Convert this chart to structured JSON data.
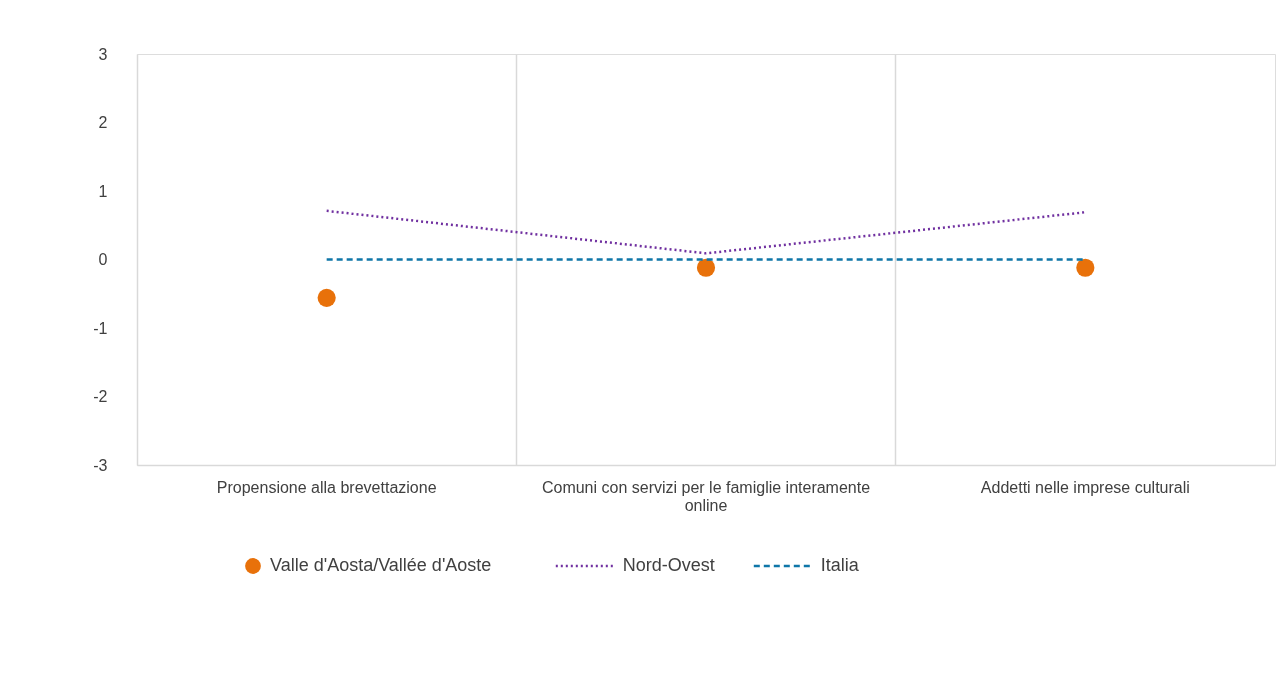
{
  "chart_data": {
    "type": "line",
    "categories": [
      "Propensione alla brevettazione",
      "Comuni con servizi per le famiglie interamente online",
      "Addetti nelle imprese culturali"
    ],
    "series": [
      {
        "name": "Valle d'Aosta/Vallée d'Aoste",
        "type": "scatter",
        "marker": "circle",
        "color": "#e8710a",
        "values": [
          -0.56,
          -0.12,
          -0.12
        ]
      },
      {
        "name": "Nord-Ovest",
        "line_style": "dotted",
        "marker": "none",
        "color": "#7030a0",
        "values": [
          0.71,
          0.09,
          0.69
        ]
      },
      {
        "name": "Italia",
        "line_style": "dashed",
        "marker": "none",
        "color": "#0e76a8",
        "values": [
          0,
          0,
          0
        ]
      }
    ],
    "ylim": [
      -3,
      3
    ],
    "yticks": [
      -3,
      -2,
      -1,
      0,
      1,
      2,
      3
    ],
    "grid": "x",
    "legend": "bottom"
  }
}
